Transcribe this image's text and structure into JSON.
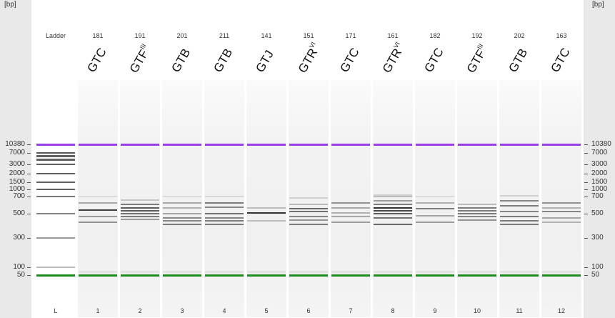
{
  "axis": {
    "unit": "[bp]",
    "labels": [
      "10380",
      "7000",
      "3000",
      "2000",
      "1500",
      "1000",
      "700",
      "500",
      "300",
      "100",
      "50"
    ]
  },
  "colors": {
    "upper_marker": "#9a3fe8",
    "lower_marker": "#1d8a1d",
    "band": "#333333"
  },
  "lanes": [
    {
      "label": "L",
      "number": "Ladder",
      "sample": "",
      "sup": "",
      "ladder": true,
      "bands": [
        [
          7000,
          0.75
        ],
        [
          5500,
          0.7
        ],
        [
          4200,
          0.7
        ],
        [
          3000,
          0.7
        ],
        [
          2000,
          0.7
        ],
        [
          1500,
          0.7
        ],
        [
          1000,
          0.7
        ],
        [
          700,
          0.6
        ],
        [
          500,
          0.55
        ],
        [
          300,
          0.45
        ],
        [
          100,
          0.3
        ]
      ]
    },
    {
      "label": "1",
      "number": "181",
      "sample": "GTC",
      "sup": "",
      "bands": [
        [
          700,
          0.1
        ],
        [
          620,
          0.35
        ],
        [
          540,
          0.85
        ],
        [
          470,
          0.4
        ],
        [
          420,
          0.45
        ]
      ]
    },
    {
      "label": "2",
      "number": "191",
      "sample": "GTF",
      "sup": "III",
      "bands": [
        [
          650,
          0.2
        ],
        [
          600,
          0.55
        ],
        [
          560,
          0.7
        ],
        [
          530,
          0.7
        ],
        [
          500,
          0.6
        ],
        [
          470,
          0.55
        ],
        [
          445,
          0.4
        ]
      ]
    },
    {
      "label": "3",
      "number": "201",
      "sample": "GTB",
      "sup": "",
      "bands": [
        [
          700,
          0.1
        ],
        [
          620,
          0.35
        ],
        [
          560,
          0.3
        ],
        [
          500,
          0.35
        ],
        [
          460,
          0.5
        ],
        [
          430,
          0.5
        ],
        [
          400,
          0.55
        ]
      ]
    },
    {
      "label": "4",
      "number": "211",
      "sample": "GTB",
      "sup": "",
      "bands": [
        [
          700,
          0.12
        ],
        [
          620,
          0.55
        ],
        [
          570,
          0.5
        ],
        [
          500,
          0.6
        ],
        [
          460,
          0.5
        ],
        [
          430,
          0.55
        ],
        [
          400,
          0.55
        ]
      ]
    },
    {
      "label": "5",
      "number": "141",
      "sample": "GTJ",
      "sup": "",
      "bands": [
        [
          560,
          0.25
        ],
        [
          510,
          0.9
        ],
        [
          430,
          0.25
        ]
      ]
    },
    {
      "label": "6",
      "number": "151",
      "sample": "GTR",
      "sup": "VI",
      "bands": [
        [
          680,
          0.15
        ],
        [
          600,
          0.25
        ],
        [
          555,
          0.65
        ],
        [
          520,
          0.6
        ],
        [
          470,
          0.5
        ],
        [
          440,
          0.45
        ],
        [
          400,
          0.55
        ]
      ]
    },
    {
      "label": "7",
      "number": "171",
      "sample": "GTC",
      "sup": "",
      "bands": [
        [
          620,
          0.45
        ],
        [
          560,
          0.35
        ],
        [
          510,
          0.3
        ],
        [
          470,
          0.35
        ],
        [
          420,
          0.4
        ]
      ]
    },
    {
      "label": "8",
      "number": "161",
      "sample": "GTR",
      "sup": "VI",
      "bands": [
        [
          760,
          0.15
        ],
        [
          700,
          0.25
        ],
        [
          640,
          0.4
        ],
        [
          600,
          0.55
        ],
        [
          560,
          0.9
        ],
        [
          530,
          0.8
        ],
        [
          500,
          0.7
        ],
        [
          460,
          0.6
        ],
        [
          400,
          0.65
        ]
      ]
    },
    {
      "label": "9",
      "number": "182",
      "sample": "GTC",
      "sup": "",
      "bands": [
        [
          700,
          0.1
        ],
        [
          620,
          0.3
        ],
        [
          550,
          0.55
        ],
        [
          480,
          0.35
        ],
        [
          420,
          0.4
        ]
      ]
    },
    {
      "label": "10",
      "number": "192",
      "sample": "GTF",
      "sup": "III",
      "bands": [
        [
          600,
          0.25
        ],
        [
          560,
          0.55
        ],
        [
          530,
          0.55
        ],
        [
          500,
          0.55
        ],
        [
          470,
          0.5
        ],
        [
          440,
          0.45
        ]
      ]
    },
    {
      "label": "11",
      "number": "202",
      "sample": "GTB",
      "sup": "",
      "bands": [
        [
          720,
          0.15
        ],
        [
          640,
          0.5
        ],
        [
          580,
          0.55
        ],
        [
          520,
          0.5
        ],
        [
          470,
          0.55
        ],
        [
          430,
          0.55
        ],
        [
          400,
          0.55
        ]
      ]
    },
    {
      "label": "12",
      "number": "163",
      "sample": "GTC",
      "sup": "",
      "bands": [
        [
          620,
          0.45
        ],
        [
          560,
          0.3
        ],
        [
          520,
          0.5
        ],
        [
          460,
          0.35
        ],
        [
          420,
          0.3
        ]
      ]
    }
  ]
}
